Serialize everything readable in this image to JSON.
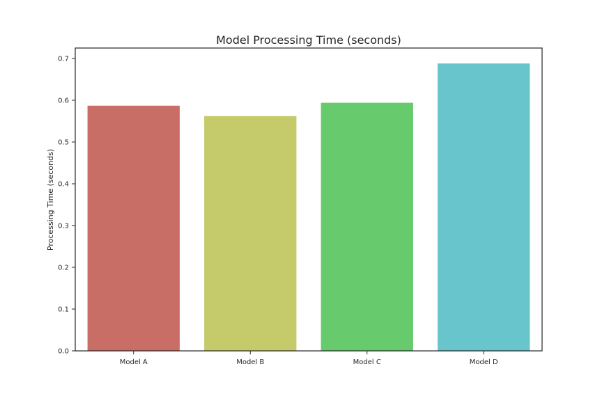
{
  "chart_data": {
    "type": "bar",
    "title": "Model Processing Time (seconds)",
    "xlabel": "",
    "ylabel": "Processing Time (seconds)",
    "categories": [
      "Model A",
      "Model B",
      "Model C",
      "Model D"
    ],
    "values": [
      0.587,
      0.562,
      0.594,
      0.688
    ],
    "colors": [
      "#c96e66",
      "#c5cb6a",
      "#67cb6e",
      "#67c5cb"
    ],
    "ylim": [
      0,
      0.725
    ],
    "yticks": [
      0.0,
      0.1,
      0.2,
      0.3,
      0.4,
      0.5,
      0.6,
      0.7
    ],
    "ytick_labels": [
      "0.0",
      "0.1",
      "0.2",
      "0.3",
      "0.4",
      "0.5",
      "0.6",
      "0.7"
    ],
    "grid": false,
    "legend": "none"
  }
}
